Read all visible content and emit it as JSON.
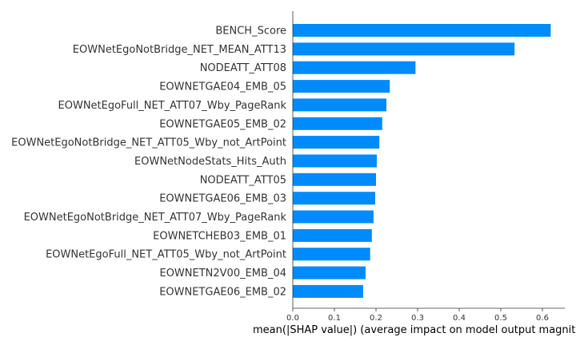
{
  "chart_data": {
    "type": "bar",
    "orientation": "horizontal",
    "categories": [
      "BENCH_Score",
      "EOWNetEgoNotBridge_NET_MEAN_ATT13",
      "NODEATT_ATT08",
      "EOWNETGAE04_EMB_05",
      "EOWNetEgoFull_NET_ATT07_Wby_PageRank",
      "EOWNETGAE05_EMB_02",
      "EOWNetEgoNotBridge_NET_ATT05_Wby_not_ArtPoint",
      "EOWNetNodeStats_Hits_Auth",
      "NODEATT_ATT05",
      "EOWNETGAE06_EMB_03",
      "EOWNetEgoNotBridge_NET_ATT07_Wby_PageRank",
      "EOWNETCHEB03_EMB_01",
      "EOWNetEgoFull_NET_ATT05_Wby_not_ArtPoint",
      "EOWNETN2V00_EMB_04",
      "EOWNETGAE06_EMB_02"
    ],
    "values": [
      0.62,
      0.533,
      0.295,
      0.233,
      0.225,
      0.215,
      0.208,
      0.202,
      0.2,
      0.198,
      0.194,
      0.19,
      0.186,
      0.175,
      0.169
    ],
    "xlabel": "mean(|SHAP value|) (average impact on model output magnitude)",
    "xticks": [
      0.0,
      0.1,
      0.2,
      0.3,
      0.4,
      0.5,
      0.6
    ],
    "xtick_labels": [
      "0.0",
      "0.1",
      "0.2",
      "0.3",
      "0.4",
      "0.5",
      "0.6"
    ],
    "xlim": [
      0,
      0.65
    ],
    "grid": false,
    "bar_color": "#008bfb",
    "text_color": "#333333",
    "axis_color": "#333333"
  }
}
